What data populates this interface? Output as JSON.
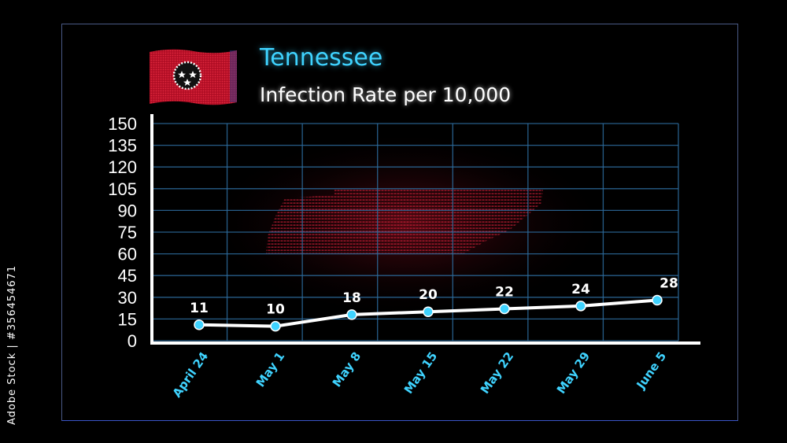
{
  "title": "Tennessee",
  "subtitle": "Infection Rate per 10,000",
  "side_id": "Adobe Stock | #356454671",
  "colors": {
    "title": "#3fd3ff",
    "grid": "#2e6ea0",
    "axis": "#ffffff",
    "xtick": "#3fd3ff",
    "line": "#ffffff",
    "marker": "#3fd3ff",
    "flag": "#c8102e"
  },
  "chart_data": {
    "type": "line",
    "title": "Tennessee",
    "subtitle": "Infection Rate per 10,000",
    "categories": [
      "April 24",
      "May 1",
      "May 8",
      "May 15",
      "May 22",
      "May 29",
      "June 5"
    ],
    "series": [
      {
        "values": [
          11,
          10,
          18,
          20,
          22,
          24,
          28
        ]
      }
    ],
    "data_labels": [
      "11",
      "10",
      "18",
      "20",
      "22",
      "24",
      "28"
    ],
    "yticks": [
      "0",
      "15",
      "30",
      "45",
      "60",
      "75",
      "90",
      "105",
      "120",
      "135",
      "150"
    ],
    "ylim": [
      0,
      150
    ],
    "grid": true,
    "legend": "none"
  }
}
